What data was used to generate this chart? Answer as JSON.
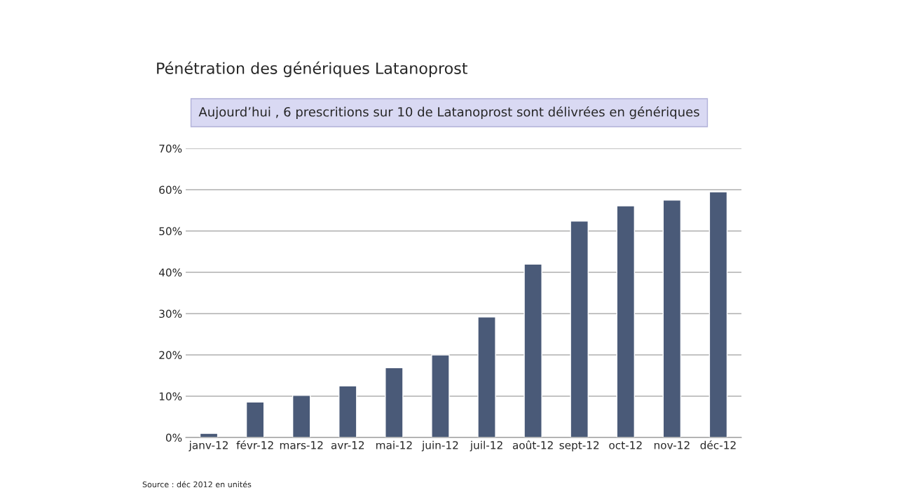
{
  "chart_data": {
    "type": "bar",
    "title": "Pénétration des génériques Latanoprost",
    "subtitle": "Aujourd’hui , 6 prescritions sur 10 de Latanoprost sont délivrées en génériques",
    "categories": [
      "janv-12",
      "févr-12",
      "mars-12",
      "avr-12",
      "mai-12",
      "juin-12",
      "juil-12",
      "août-12",
      "sept-12",
      "oct-12",
      "nov-12",
      "déc-12"
    ],
    "values": [
      1.0,
      8.6,
      10.2,
      12.5,
      16.9,
      20.0,
      29.2,
      42.0,
      52.4,
      56.1,
      57.5,
      59.5
    ],
    "color": "#4a5a78",
    "ylim": [
      0,
      70
    ],
    "yticks": [
      {
        "value": 0,
        "label": "0%"
      },
      {
        "value": 10,
        "label": "10%"
      },
      {
        "value": 20,
        "label": "20%"
      },
      {
        "value": 30,
        "label": "30%"
      },
      {
        "value": 40,
        "label": "40%"
      },
      {
        "value": 50,
        "label": "50%"
      },
      {
        "value": 60,
        "label": "60%"
      },
      {
        "value": 70,
        "label": "70%"
      }
    ],
    "grid": "y",
    "annotations": [
      "Source : déc 2012 en unités"
    ]
  }
}
